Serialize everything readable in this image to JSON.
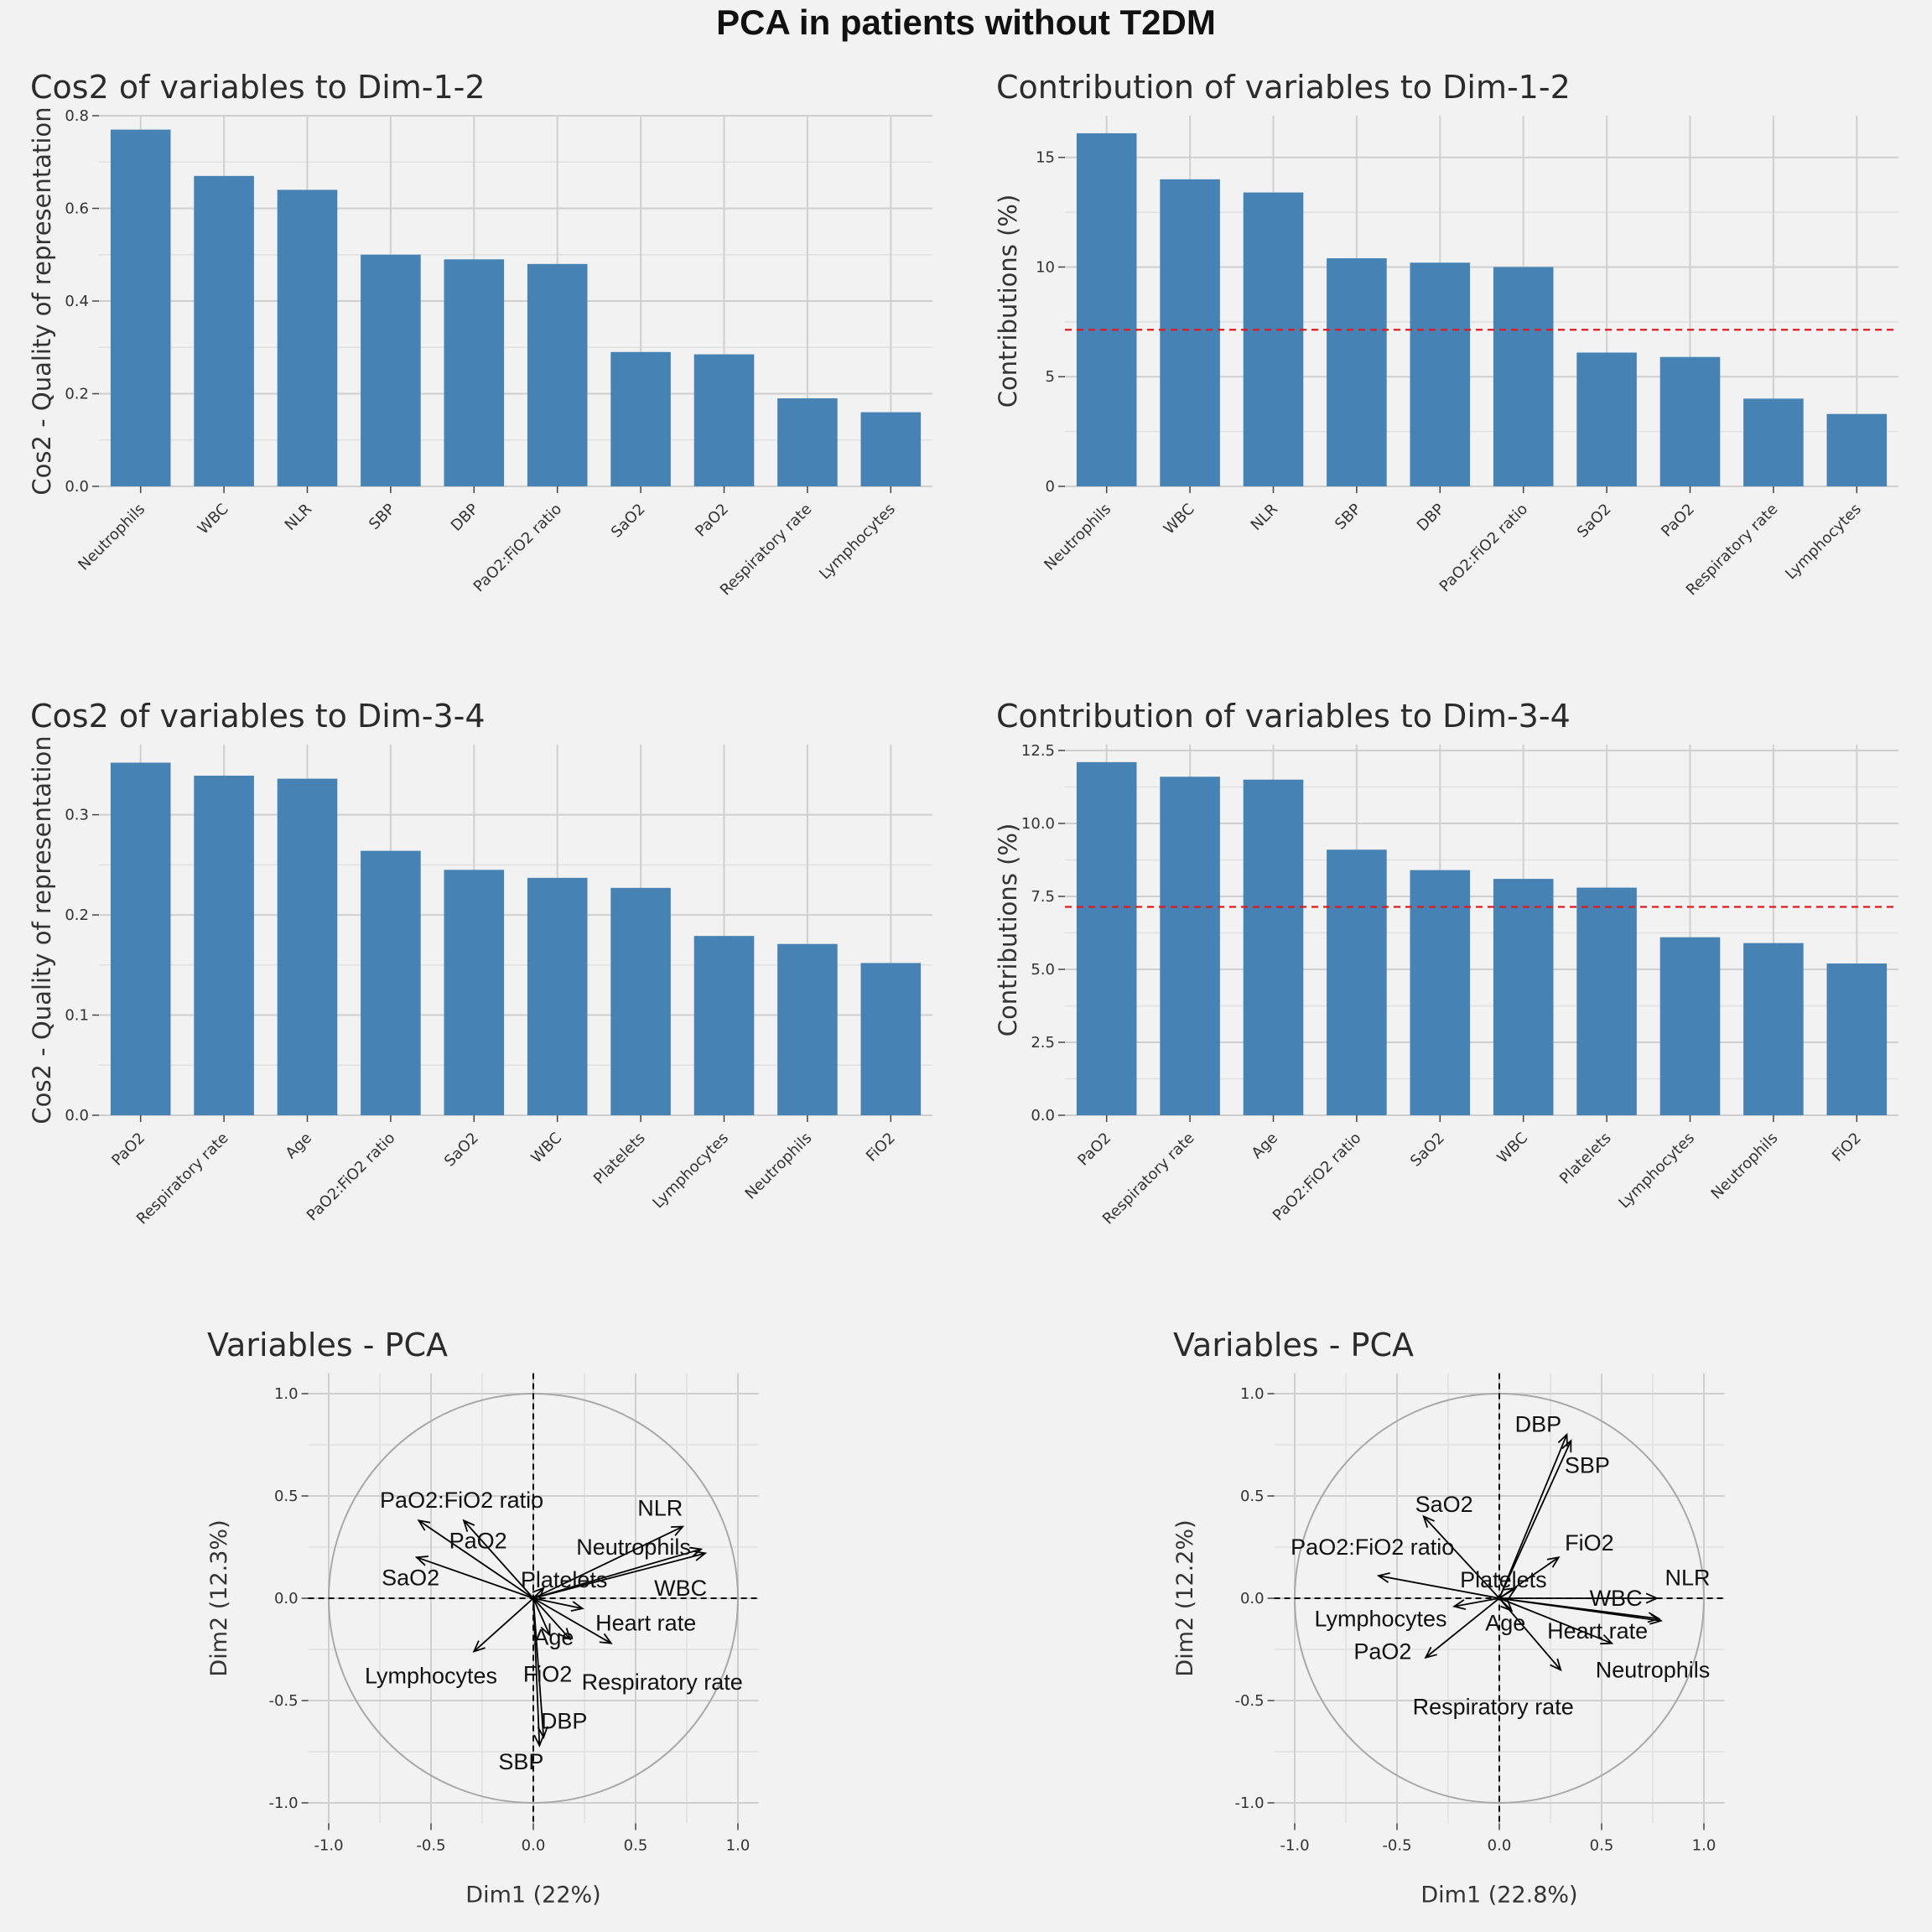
{
  "title": "PCA in patients without T2DM",
  "chart_data": [
    {
      "type": "bar",
      "title": "Cos2 of variables to Dim-1-2",
      "xlabel": "",
      "ylabel": "Cos2 - Quality of representation",
      "categories": [
        "Neutrophils",
        "WBC",
        "NLR",
        "SBP",
        "DBP",
        "PaO2:FiO2 ratio",
        "SaO2",
        "PaO2",
        "Respiratory rate",
        "Lymphocytes"
      ],
      "values": [
        0.77,
        0.67,
        0.64,
        0.5,
        0.49,
        0.48,
        0.29,
        0.285,
        0.19,
        0.16
      ],
      "ylim": [
        0,
        0.8
      ],
      "yticks": [
        0.0,
        0.2,
        0.4,
        0.6,
        0.8
      ],
      "ytick_labels": [
        "0.0",
        "0.2",
        "0.4",
        "0.6",
        "0.8"
      ],
      "bar_color": "#4682b4",
      "grid": true
    },
    {
      "type": "bar",
      "title": "Contribution of variables to Dim-1-2",
      "xlabel": "",
      "ylabel": "Contributions (%)",
      "categories": [
        "Neutrophils",
        "WBC",
        "NLR",
        "SBP",
        "DBP",
        "PaO2:FiO2 ratio",
        "SaO2",
        "PaO2",
        "Respiratory rate",
        "Lymphocytes"
      ],
      "values": [
        16.1,
        14.0,
        13.4,
        10.4,
        10.2,
        10.0,
        6.1,
        5.9,
        4.0,
        3.3
      ],
      "ylim": [
        0,
        16.9
      ],
      "yticks": [
        0,
        5,
        10,
        15
      ],
      "ytick_labels": [
        "0",
        "5",
        "10",
        "15"
      ],
      "reference_line": 7.14,
      "bar_color": "#4682b4",
      "reference_color": "#e31a1c",
      "grid": true
    },
    {
      "type": "bar",
      "title": "Cos2 of variables to Dim-3-4",
      "xlabel": "",
      "ylabel": "Cos2 - Quality of representation",
      "categories": [
        "PaO2",
        "Respiratory rate",
        "Age",
        "PaO2:FiO2 ratio",
        "SaO2",
        "WBC",
        "Platelets",
        "Lymphocytes",
        "Neutrophils",
        "FiO2"
      ],
      "values": [
        0.352,
        0.339,
        0.336,
        0.264,
        0.245,
        0.237,
        0.227,
        0.179,
        0.171,
        0.152
      ],
      "ylim": [
        0,
        0.37
      ],
      "yticks": [
        0.0,
        0.1,
        0.2,
        0.3
      ],
      "ytick_labels": [
        "0.0",
        "0.1",
        "0.2",
        "0.3"
      ],
      "bar_color": "#4682b4",
      "grid": true
    },
    {
      "type": "bar",
      "title": "Contribution of variables to Dim-3-4",
      "xlabel": "",
      "ylabel": "Contributions (%)",
      "categories": [
        "PaO2",
        "Respiratory rate",
        "Age",
        "PaO2:FiO2 ratio",
        "SaO2",
        "WBC",
        "Platelets",
        "Lymphocytes",
        "Neutrophils",
        "FiO2"
      ],
      "values": [
        12.1,
        11.6,
        11.5,
        9.1,
        8.4,
        8.1,
        7.8,
        6.1,
        5.9,
        5.2
      ],
      "ylim": [
        0,
        12.7
      ],
      "yticks": [
        0.0,
        2.5,
        5.0,
        7.5,
        10.0,
        12.5
      ],
      "ytick_labels": [
        "0.0",
        "2.5",
        "5.0",
        "7.5",
        "10.0",
        "12.5"
      ],
      "reference_line": 7.14,
      "bar_color": "#4682b4",
      "reference_color": "#e31a1c",
      "grid": true
    },
    {
      "type": "scatter",
      "subtype": "pca-variable-correlation-circle",
      "title": "Variables - PCA",
      "xlabel": "Dim1 (22%)",
      "ylabel": "Dim2 (12.3%)",
      "xlim": [
        -1.1,
        1.1
      ],
      "ylim": [
        -1.1,
        1.1
      ],
      "xticks": [
        -1.0,
        -0.5,
        0.0,
        0.5,
        1.0
      ],
      "xtick_labels": [
        "-1.0",
        "-0.5",
        "0.0",
        "0.5",
        "1.0"
      ],
      "yticks": [
        -1.0,
        -0.5,
        0.0,
        0.5,
        1.0
      ],
      "ytick_labels": [
        "-1.0",
        "-0.5",
        "0.0",
        "0.5",
        "1.0"
      ],
      "variables": [
        {
          "label": "PaO2:FiO2 ratio",
          "x": -0.56,
          "y": 0.38,
          "lx": -0.35,
          "ly": 0.48
        },
        {
          "label": "PaO2",
          "x": -0.34,
          "y": 0.38,
          "lx": -0.27,
          "ly": 0.28
        },
        {
          "label": "SaO2",
          "x": -0.57,
          "y": 0.2,
          "lx": -0.6,
          "ly": 0.1
        },
        {
          "label": "Platelets",
          "x": 0.05,
          "y": 0.05,
          "lx": 0.15,
          "ly": 0.09
        },
        {
          "label": "NLR",
          "x": 0.73,
          "y": 0.35,
          "lx": 0.62,
          "ly": 0.44
        },
        {
          "label": "Neutrophils",
          "x": 0.82,
          "y": 0.24,
          "lx": 0.49,
          "ly": 0.25
        },
        {
          "label": "WBC",
          "x": 0.84,
          "y": 0.22,
          "lx": 0.72,
          "ly": 0.05
        },
        {
          "label": "Heart rate",
          "x": 0.24,
          "y": -0.05,
          "lx": 0.55,
          "ly": -0.12
        },
        {
          "label": "Age",
          "x": 0.18,
          "y": -0.2,
          "lx": 0.1,
          "ly": -0.19
        },
        {
          "label": "Respiratory rate",
          "x": 0.38,
          "y": -0.22,
          "lx": 0.63,
          "ly": -0.41
        },
        {
          "label": "Lymphocytes",
          "x": -0.29,
          "y": -0.26,
          "lx": -0.5,
          "ly": -0.38
        },
        {
          "label": "FiO2",
          "x": 0.08,
          "y": -0.18,
          "lx": 0.07,
          "ly": -0.37
        },
        {
          "label": "DBP",
          "x": 0.05,
          "y": -0.68,
          "lx": 0.15,
          "ly": -0.6
        },
        {
          "label": "SBP",
          "x": 0.03,
          "y": -0.72,
          "lx": -0.06,
          "ly": -0.8
        }
      ]
    },
    {
      "type": "scatter",
      "subtype": "pca-variable-correlation-circle",
      "title": "Variables - PCA",
      "xlabel": "Dim1 (22.8%)",
      "ylabel": "Dim2 (12.2%)",
      "xlim": [
        -1.1,
        1.1
      ],
      "ylim": [
        -1.1,
        1.1
      ],
      "xticks": [
        -1.0,
        -0.5,
        0.0,
        0.5,
        1.0
      ],
      "xtick_labels": [
        "-1.0",
        "-0.5",
        "0.0",
        "0.5",
        "1.0"
      ],
      "yticks": [
        -1.0,
        -0.5,
        0.0,
        0.5,
        1.0
      ],
      "ytick_labels": [
        "-1.0",
        "-0.5",
        "0.0",
        "0.5",
        "1.0"
      ],
      "variables": [
        {
          "label": "DBP",
          "x": 0.33,
          "y": 0.8,
          "lx": 0.19,
          "ly": 0.85
        },
        {
          "label": "SBP",
          "x": 0.35,
          "y": 0.77,
          "lx": 0.43,
          "ly": 0.65
        },
        {
          "label": "SaO2",
          "x": -0.37,
          "y": 0.4,
          "lx": -0.27,
          "ly": 0.46
        },
        {
          "label": "FiO2",
          "x": 0.29,
          "y": 0.2,
          "lx": 0.44,
          "ly": 0.27
        },
        {
          "label": "PaO2:FiO2 ratio",
          "x": -0.59,
          "y": 0.11,
          "lx": -0.62,
          "ly": 0.25
        },
        {
          "label": "Platelets",
          "x": 0.08,
          "y": 0.05,
          "lx": 0.02,
          "ly": 0.09
        },
        {
          "label": "WBC",
          "x": 0.77,
          "y": 0.0,
          "lx": 0.57,
          "ly": 0.0
        },
        {
          "label": "NLR",
          "x": 0.78,
          "y": -0.1,
          "lx": 0.92,
          "ly": 0.1
        },
        {
          "label": "Neutrophils",
          "x": 0.79,
          "y": -0.11,
          "lx": 0.75,
          "ly": -0.35
        },
        {
          "label": "Heart rate",
          "x": 0.55,
          "y": -0.22,
          "lx": 0.48,
          "ly": -0.16
        },
        {
          "label": "Lymphocytes",
          "x": -0.22,
          "y": -0.04,
          "lx": -0.58,
          "ly": -0.1
        },
        {
          "label": "PaO2",
          "x": -0.36,
          "y": -0.29,
          "lx": -0.57,
          "ly": -0.26
        },
        {
          "label": "Age",
          "x": 0.06,
          "y": -0.06,
          "lx": 0.03,
          "ly": -0.12
        },
        {
          "label": "Respiratory rate",
          "x": 0.3,
          "y": -0.35,
          "lx": -0.03,
          "ly": -0.53
        }
      ]
    }
  ]
}
